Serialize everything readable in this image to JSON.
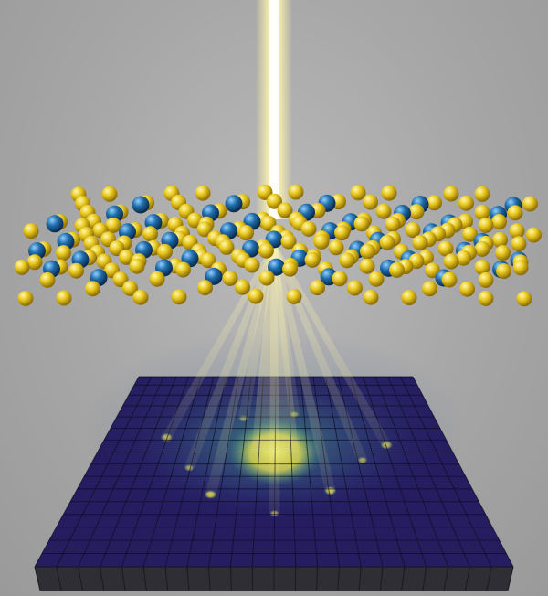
{
  "scene": {
    "colors": {
      "background": "#a8a8a8",
      "beam": "#fff4a0",
      "sulfur_atom": "#e2c21a",
      "metal_atom": "#1e6aa8",
      "detector_dark": "#241a5e",
      "detector_mid": "#2a6a8e",
      "detector_hot": "#f4e84a",
      "detector_edge": "#3a3a40"
    },
    "elements": [
      {
        "role": "electron-beam",
        "icon": "vertical-light-beam"
      },
      {
        "role": "atomic-monolayer",
        "icon": "sphere-lattice"
      },
      {
        "role": "diffracted-beams",
        "icon": "light-rays"
      },
      {
        "role": "pixel-detector",
        "icon": "tiled-grid"
      },
      {
        "role": "diffraction-pattern",
        "icon": "bright-spots"
      }
    ]
  }
}
